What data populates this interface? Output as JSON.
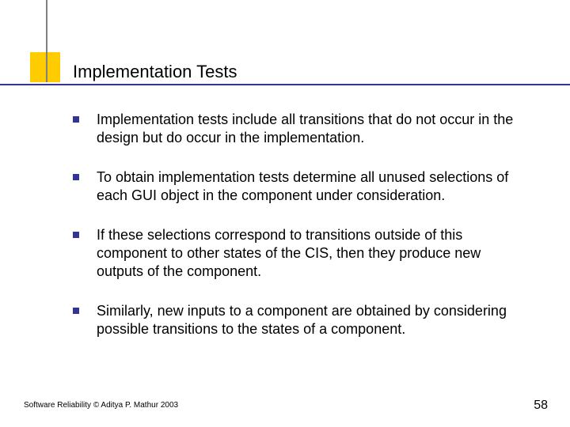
{
  "colors": {
    "accent": "#ffcc00",
    "hline": "#333399",
    "vline": "#808080",
    "bullet": "#333399",
    "text": "#000000",
    "bg": "#ffffff"
  },
  "title": "Implementation Tests",
  "bullets": [
    "Implementation tests include all transitions that do not occur in the design but do occur in the implementation.",
    "To obtain implementation tests determine all unused selections of each GUI object in the component under consideration.",
    "If these selections correspond to transitions outside of this component to other states of the CIS, then they produce new outputs of the component.",
    "Similarly, new inputs to a component are obtained by considering possible transitions to the states of a component."
  ],
  "footer": "Software Reliability © Aditya P. Mathur 2003",
  "page_number": "58"
}
